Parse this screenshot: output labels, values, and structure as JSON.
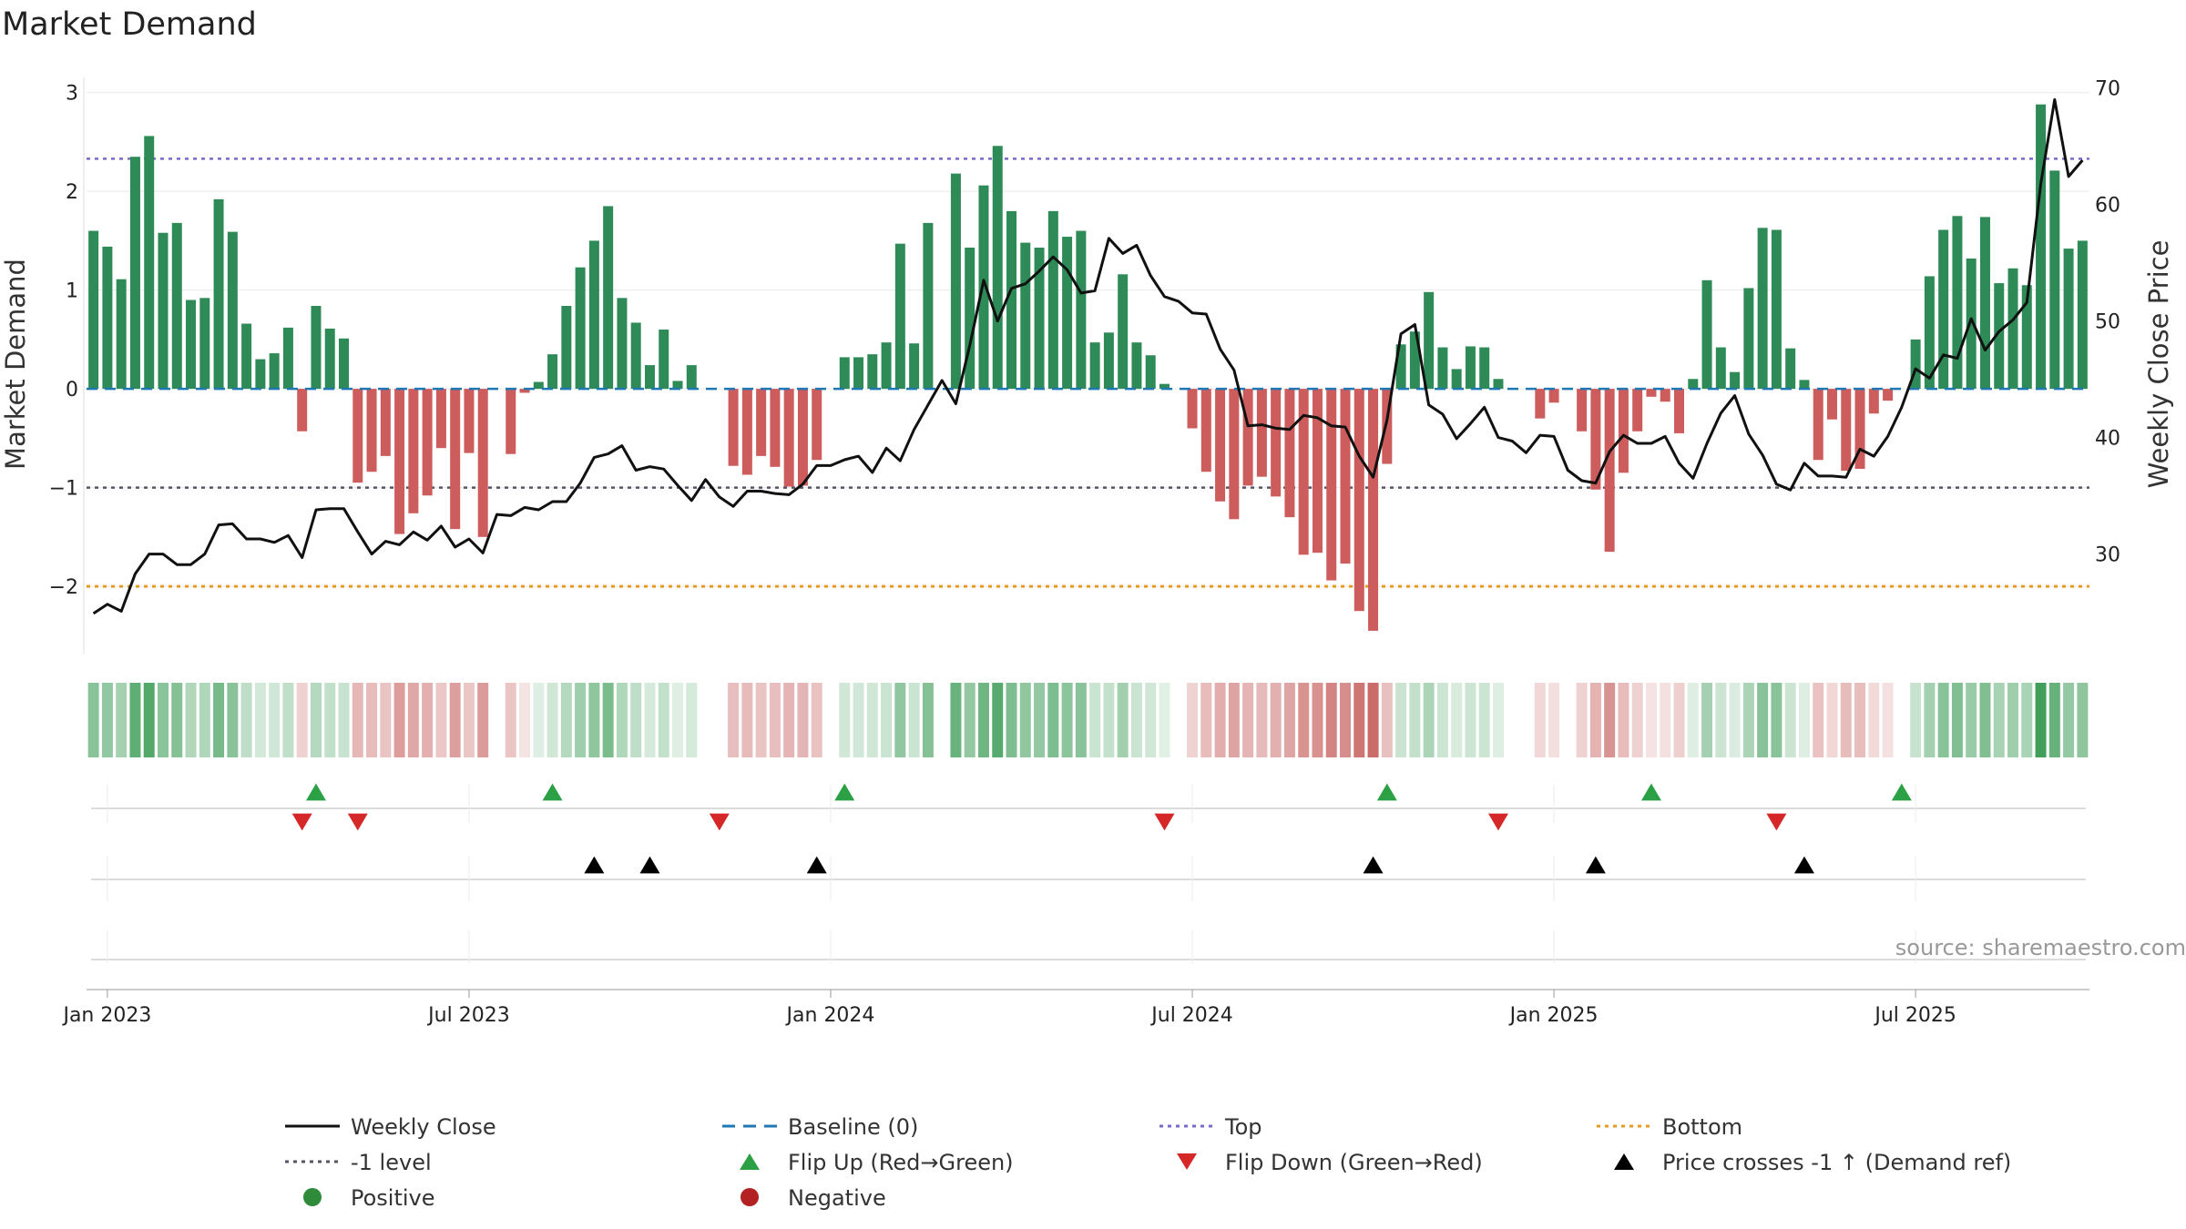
{
  "chart_data": {
    "type": "bar",
    "title": "Market Demand",
    "ylabel": "Market Demand",
    "y2label": "Weekly Close Price",
    "source_text": "source: sharemaestro.com",
    "ylim": [
      -2.7,
      3.2
    ],
    "y2lim": [
      21.3,
      71.3
    ],
    "yticks": [
      3,
      2,
      1,
      0,
      -1,
      -2
    ],
    "ytick_labels": [
      "3",
      "2",
      "1",
      "0",
      "−1",
      "−2"
    ],
    "y2ticks": [
      70,
      60,
      50,
      40,
      30
    ],
    "y2tick_labels": [
      "70",
      "60",
      "50",
      "40",
      "30"
    ],
    "x_date_labels": [
      "Jan 2023",
      "Jul 2023",
      "Jan 2024",
      "Jul 2024",
      "Jan 2025",
      "Jul 2025"
    ],
    "reference_lines": {
      "baseline": 0,
      "top": 2.33,
      "minus_one": -1,
      "bottom": -2
    },
    "series": [
      {
        "name": "Market Demand",
        "type": "bar",
        "values": [
          1.6,
          1.44,
          1.11,
          2.35,
          2.56,
          1.58,
          1.68,
          0.9,
          0.92,
          1.92,
          1.59,
          0.66,
          0.3,
          0.36,
          0.62,
          -0.43,
          0.84,
          0.61,
          0.51,
          -0.95,
          -0.84,
          -0.68,
          -1.47,
          -1.26,
          -1.08,
          -0.6,
          -1.42,
          -0.65,
          -1.5,
          null,
          -0.66,
          -0.04,
          0.07,
          0.35,
          0.84,
          1.23,
          1.5,
          1.85,
          0.92,
          0.67,
          0.24,
          0.6,
          0.08,
          0.24,
          null,
          null,
          -0.78,
          -0.87,
          -0.68,
          -0.79,
          -0.99,
          -0.98,
          -0.72,
          null,
          0.32,
          0.32,
          0.35,
          0.47,
          1.47,
          0.46,
          1.68,
          null,
          2.18,
          1.43,
          2.06,
          2.46,
          1.8,
          1.48,
          1.43,
          1.8,
          1.54,
          1.6,
          0.47,
          0.57,
          1.16,
          0.47,
          0.34,
          0.05,
          null,
          -0.4,
          -0.84,
          -1.14,
          -1.32,
          -0.98,
          -0.89,
          -1.09,
          -1.3,
          -1.68,
          -1.66,
          -1.94,
          -1.77,
          -2.25,
          -2.45,
          -0.76,
          0.45,
          0.58,
          0.98,
          0.42,
          0.2,
          0.43,
          0.42,
          0.1,
          null,
          null,
          -0.3,
          -0.14,
          null,
          -0.43,
          -1.02,
          -1.65,
          -0.85,
          -0.43,
          -0.08,
          -0.13,
          -0.45,
          0.1,
          1.1,
          0.42,
          0.17,
          1.02,
          1.63,
          1.61,
          0.41,
          0.09,
          -0.72,
          -0.31,
          -0.83,
          -0.81,
          -0.25,
          -0.12,
          null,
          0.5,
          1.14,
          1.61,
          1.75,
          1.32,
          1.74,
          1.07,
          1.22,
          1.05,
          2.88,
          2.21,
          1.42,
          1.5
        ]
      },
      {
        "name": "Weekly Close",
        "type": "line",
        "values": [
          24.9,
          25.7,
          25.1,
          28.3,
          30.0,
          30.0,
          29.1,
          29.1,
          30.0,
          32.5,
          32.6,
          31.3,
          31.3,
          31.0,
          31.6,
          29.7,
          33.8,
          33.9,
          33.9,
          31.9,
          30.0,
          31.1,
          30.8,
          31.9,
          31.2,
          32.4,
          30.6,
          31.3,
          30.1,
          33.4,
          33.3,
          34.0,
          33.8,
          34.5,
          34.5,
          36.1,
          38.3,
          38.6,
          39.3,
          37.2,
          37.5,
          37.3,
          35.9,
          34.6,
          36.4,
          34.9,
          34.1,
          35.4,
          35.4,
          35.2,
          35.1,
          36.0,
          37.6,
          37.6,
          38.1,
          38.4,
          37.0,
          39.1,
          38.0,
          40.7,
          42.8,
          44.9,
          42.9,
          47.9,
          53.5,
          50.0,
          52.8,
          53.2,
          54.3,
          55.5,
          54.4,
          52.4,
          52.6,
          57.1,
          55.8,
          56.5,
          53.9,
          52.1,
          51.7,
          50.7,
          50.6,
          47.6,
          45.8,
          41.0,
          41.1,
          40.8,
          40.7,
          41.9,
          41.7,
          41.0,
          40.9,
          38.4,
          36.6,
          41.5,
          48.9,
          49.7,
          42.8,
          42.0,
          39.9,
          41.2,
          42.6,
          40.0,
          39.7,
          38.7,
          40.2,
          40.1,
          37.2,
          36.3,
          36.1,
          38.8,
          40.2,
          39.5,
          39.5,
          40.1,
          37.8,
          36.5,
          39.5,
          42.1,
          43.6,
          40.3,
          38.5,
          36.0,
          35.5,
          37.8,
          36.7,
          36.7,
          36.6,
          39.0,
          38.4,
          40.1,
          42.6,
          45.9,
          45.1,
          47.1,
          46.8,
          50.2,
          47.5,
          49.1,
          50.1,
          51.6,
          61.8,
          69.0,
          62.4,
          63.8
        ]
      }
    ],
    "flip_up_weeks": [
      16,
      33,
      54,
      93,
      112,
      130
    ],
    "flip_down_weeks": [
      15,
      19,
      45,
      77,
      101,
      121
    ],
    "price_cross_weeks": [
      36,
      40,
      52,
      92,
      108,
      123
    ],
    "legend": [
      {
        "label": "Weekly Close",
        "marker": "solid-line",
        "color": "#111111"
      },
      {
        "label": "Baseline (0)",
        "marker": "dash-line",
        "color": "#1f77b4"
      },
      {
        "label": "Top",
        "marker": "dot-line",
        "color": "#7b68c8"
      },
      {
        "label": "Bottom",
        "marker": "dot-line",
        "color": "#e69b23"
      },
      {
        "label": "-1 level",
        "marker": "dot-line",
        "color": "#555566"
      },
      {
        "label": "Flip Up (Red→Green)",
        "marker": "triangle-up",
        "color": "#2ca044"
      },
      {
        "label": "Flip Down (Green→Red)",
        "marker": "triangle-down",
        "color": "#d62728"
      },
      {
        "label": "Price crosses -1 ↑ (Demand ref)",
        "marker": "triangle-up",
        "color": "#000000"
      },
      {
        "label": "Positive",
        "marker": "circle",
        "color": "#2e8b3a"
      },
      {
        "label": "Negative",
        "marker": "circle",
        "color": "#b22222"
      }
    ],
    "colors": {
      "positive": "#2e8b57",
      "negative": "#cd5c5c",
      "heat_positive": "#3a9b55",
      "heat_negative": "#c0504d",
      "price": "#111111"
    }
  }
}
